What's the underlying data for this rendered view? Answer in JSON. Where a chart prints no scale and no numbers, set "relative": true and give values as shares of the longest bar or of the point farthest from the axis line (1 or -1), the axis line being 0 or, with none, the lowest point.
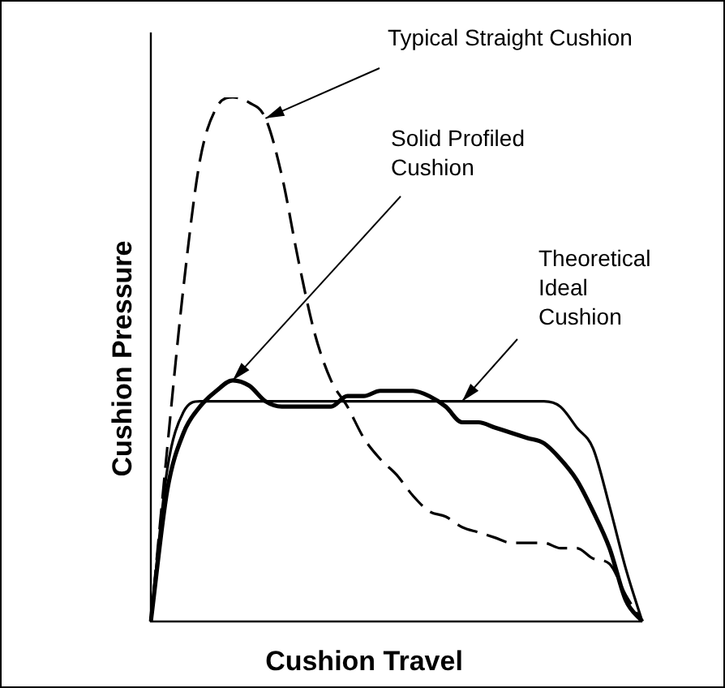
{
  "chart_data": {
    "type": "line",
    "relative": true,
    "xlabel": "Cushion Travel",
    "ylabel": "Cushion Pressure",
    "legend": false,
    "grid": false,
    "marker": "none",
    "categories": [
      null,
      null,
      null,
      null,
      null,
      null,
      null,
      null,
      null,
      null,
      null,
      null,
      null,
      null,
      null,
      null,
      null,
      null,
      null,
      null,
      null,
      null,
      null,
      null,
      null,
      null,
      null,
      null,
      null,
      null,
      null
    ],
    "series": [
      {
        "name": "Typical Straight Cushion",
        "color": "#000000",
        "line_style": "dashed",
        "values": [
          0,
          0.33,
          0.64,
          0.88,
          0.98,
          1.0,
          0.99,
          0.96,
          0.85,
          0.69,
          0.55,
          0.46,
          0.41,
          0.35,
          0.31,
          0.28,
          0.24,
          0.21,
          0.2,
          0.18,
          0.17,
          0.16,
          0.15,
          0.15,
          0.15,
          0.14,
          0.14,
          0.12,
          0.11,
          0.05,
          0
        ]
      },
      {
        "name": "Solid Profiled Cushion",
        "color": "#000000",
        "line_style": "solid",
        "values": [
          0,
          0.25,
          0.36,
          0.41,
          0.44,
          0.46,
          0.45,
          0.42,
          0.41,
          0.41,
          0.41,
          0.41,
          0.43,
          0.43,
          0.44,
          0.44,
          0.44,
          0.43,
          0.41,
          0.38,
          0.38,
          0.37,
          0.36,
          0.35,
          0.34,
          0.31,
          0.27,
          0.21,
          0.14,
          0.04,
          0
        ]
      },
      {
        "name": "Theoretical Ideal Cushion",
        "color": "#000000",
        "line_style": "solid",
        "values": [
          0,
          0.29,
          0.4,
          0.42,
          0.42,
          0.42,
          0.42,
          0.42,
          0.42,
          0.42,
          0.42,
          0.42,
          0.42,
          0.42,
          0.42,
          0.42,
          0.42,
          0.42,
          0.42,
          0.42,
          0.42,
          0.42,
          0.42,
          0.42,
          0.42,
          0.41,
          0.37,
          0.33,
          0.22,
          0.1,
          0
        ]
      }
    ]
  }
}
